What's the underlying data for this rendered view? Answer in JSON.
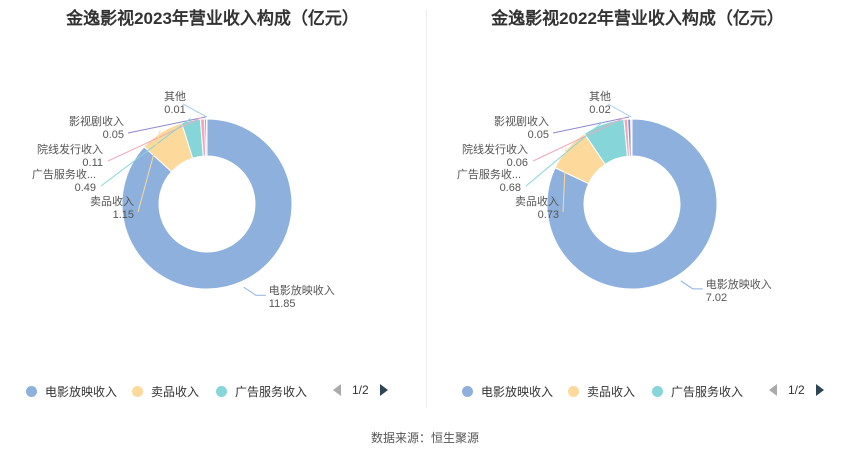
{
  "chart_data": [
    {
      "type": "pie",
      "title": "金逸影视2023年营业收入构成（亿元）",
      "slices": [
        {
          "name": "电影放映收入",
          "value": 11.85,
          "value_label": "11.85",
          "color": "#8eb0dd"
        },
        {
          "name": "卖品收入",
          "value": 1.15,
          "value_label": "1.15",
          "color": "#fdd99b"
        },
        {
          "name": "广告服务收...",
          "value": 0.49,
          "value_label": "0.49",
          "color": "#86d6d9"
        },
        {
          "name": "院线发行收入",
          "value": 0.11,
          "value_label": "0.11",
          "color": "#f2a8bb"
        },
        {
          "name": "影视剧收入",
          "value": 0.05,
          "value_label": "0.05",
          "color": "#8f88cf"
        },
        {
          "name": "其他",
          "value": 0.01,
          "value_label": "0.01",
          "color": "#a9cdf0"
        }
      ],
      "legend": {
        "items": [
          {
            "name": "电影放映收入",
            "color": "#8eb0dd"
          },
          {
            "name": "卖品收入",
            "color": "#fdd99b"
          },
          {
            "name": "广告服务收入",
            "color": "#86d6d9"
          }
        ],
        "page": "1/2"
      }
    },
    {
      "type": "pie",
      "title": "金逸影视2022年营业收入构成（亿元）",
      "slices": [
        {
          "name": "电影放映收入",
          "value": 7.02,
          "value_label": "7.02",
          "color": "#8eb0dd"
        },
        {
          "name": "卖品收入",
          "value": 0.73,
          "value_label": "0.73",
          "color": "#fdd99b"
        },
        {
          "name": "广告服务收...",
          "value": 0.68,
          "value_label": "0.68",
          "color": "#86d6d9"
        },
        {
          "name": "院线发行收入",
          "value": 0.06,
          "value_label": "0.06",
          "color": "#f2a8bb"
        },
        {
          "name": "影视剧收入",
          "value": 0.05,
          "value_label": "0.05",
          "color": "#8f88cf"
        },
        {
          "name": "其他",
          "value": 0.02,
          "value_label": "0.02",
          "color": "#a9cdf0"
        }
      ],
      "legend": {
        "items": [
          {
            "name": "电影放映收入",
            "color": "#8eb0dd"
          },
          {
            "name": "卖品收入",
            "color": "#fdd99b"
          },
          {
            "name": "广告服务收入",
            "color": "#86d6d9"
          }
        ],
        "page": "1/2"
      }
    }
  ],
  "footer": {
    "source": "数据来源：恒生聚源"
  }
}
